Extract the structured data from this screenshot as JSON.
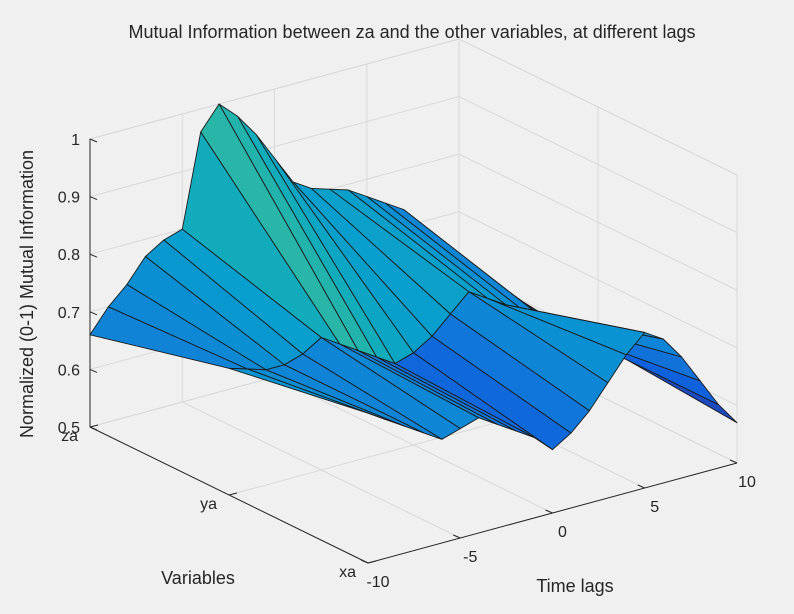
{
  "chart_data": {
    "type": "surface",
    "title": "Mutual Information between za and the other variables, at different lags",
    "xlabel": "Time lags",
    "ylabel": "Variables",
    "zlabel": "Normalized (0-1) Mutual Information",
    "x": [
      -10,
      -9,
      -8,
      -7,
      -6,
      -5,
      -4,
      -3,
      -2,
      -1,
      0,
      1,
      2,
      3,
      4,
      5,
      6,
      7,
      8,
      9,
      10
    ],
    "x_ticks": [
      -10,
      -5,
      0,
      5,
      10
    ],
    "x_tick_labels": [
      "-10",
      "-5",
      "0",
      "5",
      "10"
    ],
    "y_ticks": [
      1,
      2,
      3
    ],
    "y_tick_labels": [
      "xa",
      "ya",
      "za"
    ],
    "z_ticks": [
      0.5,
      0.6,
      0.7,
      0.8,
      0.9,
      1
    ],
    "z_tick_labels": [
      "0.5",
      "0.6",
      "0.7",
      "0.8",
      "0.9",
      "1"
    ],
    "xlim": [
      -10,
      10
    ],
    "ylim": [
      1,
      3
    ],
    "zlim": [
      0.5,
      1
    ],
    "grid": true,
    "colormap": "parula",
    "series": [
      {
        "name": "xa",
        "y": 1,
        "values": [
          0.76,
          0.74,
          0.72,
          0.7,
          0.68,
          0.69,
          0.7,
          0.68,
          0.66,
          0.64,
          0.61,
          0.63,
          0.66,
          0.7,
          0.74,
          0.77,
          0.75,
          0.71,
          0.66,
          0.61,
          0.57
        ]
      },
      {
        "name": "ya",
        "y": 2,
        "values": [
          0.72,
          0.71,
          0.7,
          0.7,
          0.71,
          0.73,
          0.71,
          0.69,
          0.67,
          0.65,
          0.66,
          0.68,
          0.71,
          0.74,
          0.72,
          0.7,
          0.68,
          0.66,
          0.63,
          0.61,
          0.59
        ]
      },
      {
        "name": "za",
        "y": 3,
        "values": [
          0.66,
          0.7,
          0.73,
          0.77,
          0.79,
          0.8,
          0.96,
          1.0,
          0.97,
          0.93,
          0.88,
          0.83,
          0.81,
          0.8,
          0.79,
          0.77,
          0.75,
          0.73,
          0.69,
          0.64,
          0.6
        ]
      }
    ]
  }
}
